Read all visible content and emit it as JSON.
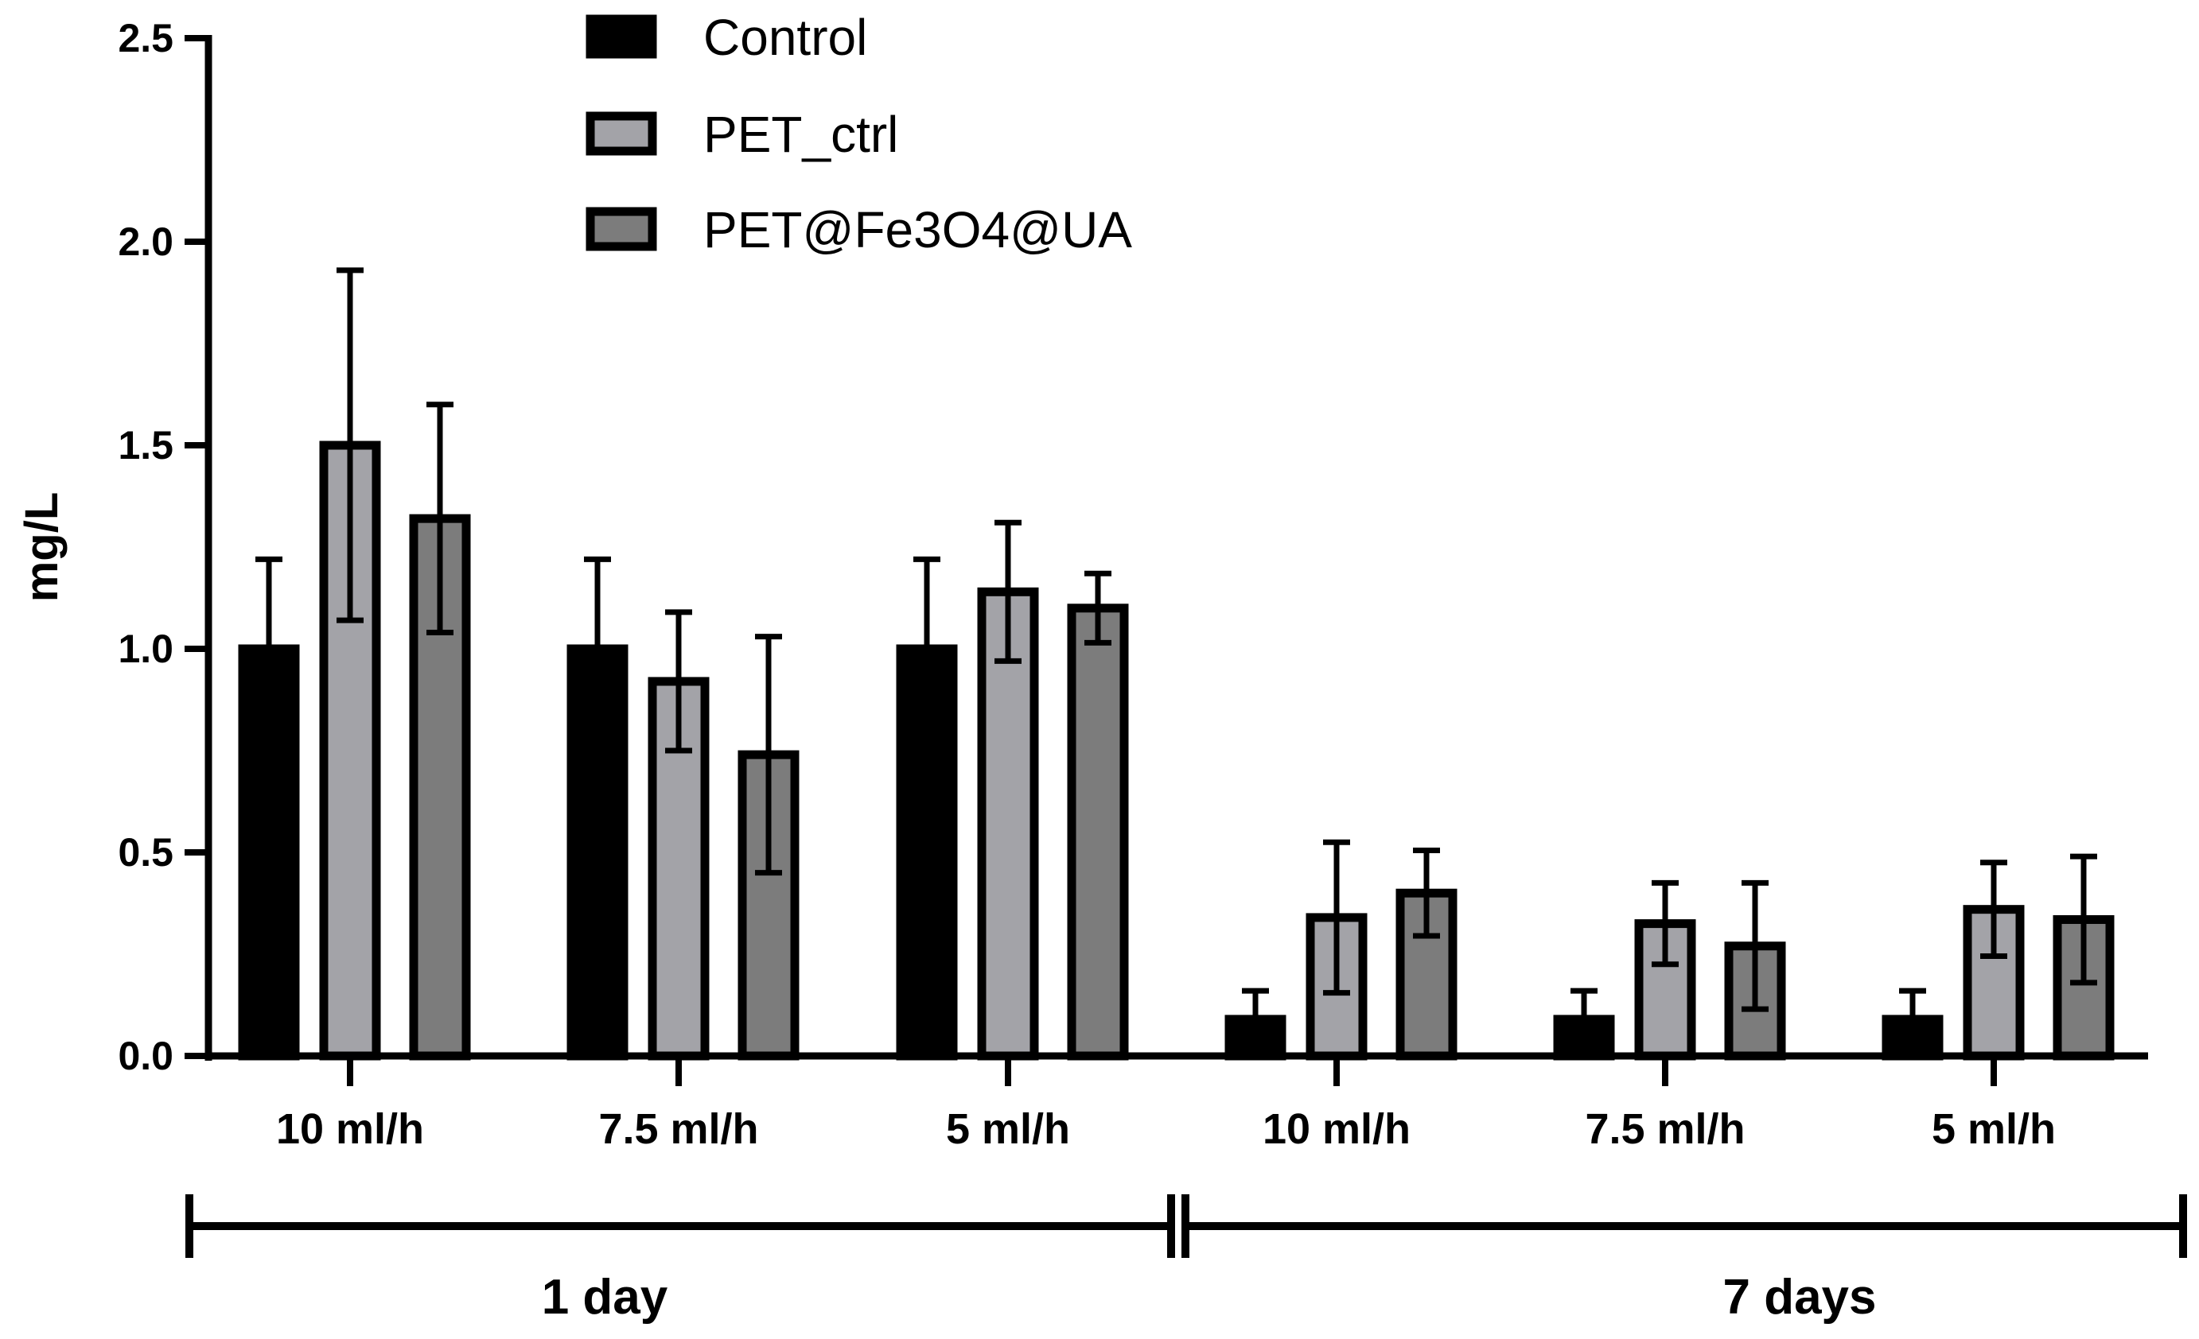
{
  "chart_data": {
    "type": "bar",
    "title": "",
    "xlabel": "",
    "ylabel": "mg/L",
    "ylim": [
      0,
      2.5
    ],
    "yticks": [
      "0.0",
      "0.5",
      "1.0",
      "1.5",
      "2.0",
      "2.5"
    ],
    "categories": [
      "10 ml/h",
      "7.5 ml/h",
      "5 ml/h",
      "10 ml/h",
      "7.5 ml/h",
      "5 ml/h"
    ],
    "groups": [
      {
        "label": "1 day",
        "categories": [
          0,
          1,
          2
        ]
      },
      {
        "label": "7 days",
        "categories": [
          3,
          4,
          5
        ]
      }
    ],
    "series": [
      {
        "name": "Control",
        "color": "#000000",
        "values": [
          1.0,
          1.0,
          1.0,
          0.09,
          0.09,
          0.09
        ],
        "errors": [
          0.22,
          0.22,
          0.22,
          0.07,
          0.07,
          0.07
        ]
      },
      {
        "name": "PET_ctrl",
        "color": "#a3a3a8",
        "values": [
          1.5,
          0.92,
          1.14,
          0.34,
          0.325,
          0.36
        ],
        "errors": [
          0.43,
          0.17,
          0.17,
          0.185,
          0.1,
          0.115
        ]
      },
      {
        "name": "PET@Fe3O4@UA",
        "color": "#7c7c7c",
        "values": [
          1.32,
          0.74,
          1.1,
          0.4,
          0.27,
          0.335
        ],
        "errors": [
          0.28,
          0.29,
          0.085,
          0.105,
          0.155,
          0.155
        ]
      }
    ],
    "legend_position": "top-center",
    "grid": false
  }
}
